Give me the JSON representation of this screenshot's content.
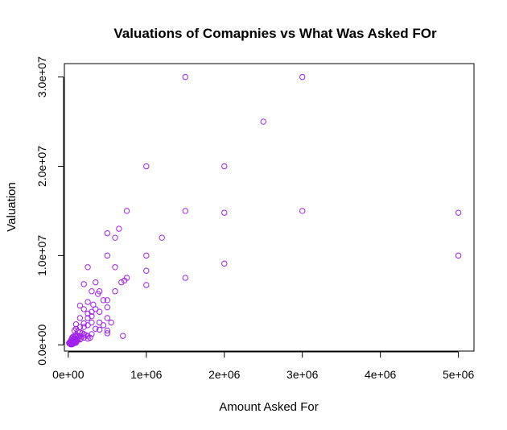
{
  "chart_data": {
    "type": "scatter",
    "title": "Valuations of Comapnies vs What Was Asked FOr",
    "xlabel": "Amount Asked For",
    "ylabel": "Valuation",
    "xlim": [
      -50000,
      5200000
    ],
    "ylim": [
      -700000,
      31500000
    ],
    "x_ticks": [
      {
        "value": 0,
        "label": "0e+00"
      },
      {
        "value": 1000000,
        "label": "1e+06"
      },
      {
        "value": 2000000,
        "label": "2e+06"
      },
      {
        "value": 3000000,
        "label": "3e+06"
      },
      {
        "value": 4000000,
        "label": "4e+06"
      },
      {
        "value": 5000000,
        "label": "5e+06"
      }
    ],
    "y_ticks": [
      {
        "value": 0,
        "label": "0.0e+00"
      },
      {
        "value": 10000000,
        "label": "1.0e+07"
      },
      {
        "value": 20000000,
        "label": "2.0e+07"
      },
      {
        "value": 30000000,
        "label": "3.0e+07"
      }
    ],
    "grid": false,
    "marker_color": "#a020f0",
    "series": [
      {
        "points": [
          [
            1500000,
            30000000
          ],
          [
            3000000,
            30000000
          ],
          [
            2500000,
            25000000
          ],
          [
            1000000,
            20000000
          ],
          [
            2000000,
            20000000
          ],
          [
            750000,
            15000000
          ],
          [
            1500000,
            15000000
          ],
          [
            2000000,
            14800000
          ],
          [
            3000000,
            15000000
          ],
          [
            5000000,
            14800000
          ],
          [
            650000,
            13000000
          ],
          [
            500000,
            12500000
          ],
          [
            600000,
            12000000
          ],
          [
            1200000,
            12000000
          ],
          [
            500000,
            10000000
          ],
          [
            1000000,
            10000000
          ],
          [
            5000000,
            10000000
          ],
          [
            2000000,
            9100000
          ],
          [
            250000,
            8700000
          ],
          [
            600000,
            8700000
          ],
          [
            1000000,
            8300000
          ],
          [
            1500000,
            7500000
          ],
          [
            750000,
            7500000
          ],
          [
            720000,
            7200000
          ],
          [
            680000,
            7000000
          ],
          [
            350000,
            7000000
          ],
          [
            200000,
            6800000
          ],
          [
            1000000,
            6700000
          ],
          [
            300000,
            6000000
          ],
          [
            400000,
            6000000
          ],
          [
            600000,
            6000000
          ],
          [
            380000,
            5700000
          ],
          [
            450000,
            5000000
          ],
          [
            500000,
            5000000
          ],
          [
            250000,
            4800000
          ],
          [
            320000,
            4500000
          ],
          [
            150000,
            4400000
          ],
          [
            200000,
            4000000
          ],
          [
            350000,
            4000000
          ],
          [
            500000,
            4200000
          ],
          [
            300000,
            3700000
          ],
          [
            400000,
            3700000
          ],
          [
            250000,
            3500000
          ],
          [
            150000,
            3000000
          ],
          [
            250000,
            3000000
          ],
          [
            300000,
            3200000
          ],
          [
            500000,
            3000000
          ],
          [
            550000,
            2500000
          ],
          [
            300000,
            2500000
          ],
          [
            400000,
            2500000
          ],
          [
            200000,
            2400000
          ],
          [
            100000,
            2300000
          ],
          [
            250000,
            2200000
          ],
          [
            450000,
            2200000
          ],
          [
            150000,
            2000000
          ],
          [
            200000,
            2000000
          ],
          [
            350000,
            1800000
          ],
          [
            400000,
            1700000
          ],
          [
            500000,
            1600000
          ],
          [
            500000,
            1300000
          ],
          [
            100000,
            1800000
          ],
          [
            80000,
            1600000
          ],
          [
            120000,
            1500000
          ],
          [
            150000,
            1400000
          ],
          [
            180000,
            1300000
          ],
          [
            200000,
            1200000
          ],
          [
            220000,
            1100000
          ],
          [
            250000,
            1000000
          ],
          [
            300000,
            1200000
          ],
          [
            280000,
            800000
          ],
          [
            700000,
            1000000
          ],
          [
            100000,
            1100000
          ],
          [
            120000,
            1000000
          ],
          [
            150000,
            1000000
          ],
          [
            80000,
            1000000
          ],
          [
            60000,
            900000
          ],
          [
            100000,
            900000
          ],
          [
            130000,
            800000
          ],
          [
            160000,
            700000
          ],
          [
            50000,
            800000
          ],
          [
            70000,
            700000
          ],
          [
            90000,
            700000
          ],
          [
            110000,
            600000
          ],
          [
            40000,
            600000
          ],
          [
            60000,
            500000
          ],
          [
            80000,
            500000
          ],
          [
            100000,
            400000
          ],
          [
            120000,
            500000
          ],
          [
            150000,
            600000
          ],
          [
            200000,
            800000
          ],
          [
            250000,
            700000
          ],
          [
            30000,
            400000
          ],
          [
            50000,
            400000
          ],
          [
            70000,
            300000
          ],
          [
            90000,
            300000
          ],
          [
            20000,
            300000
          ],
          [
            40000,
            200000
          ],
          [
            60000,
            200000
          ],
          [
            80000,
            200000
          ],
          [
            100000,
            250000
          ],
          [
            10000,
            200000
          ],
          [
            25000,
            100000
          ],
          [
            45000,
            100000
          ],
          [
            65000,
            150000
          ],
          [
            30000,
            50000
          ],
          [
            50000,
            50000
          ],
          [
            15000,
            150000
          ]
        ]
      }
    ]
  }
}
